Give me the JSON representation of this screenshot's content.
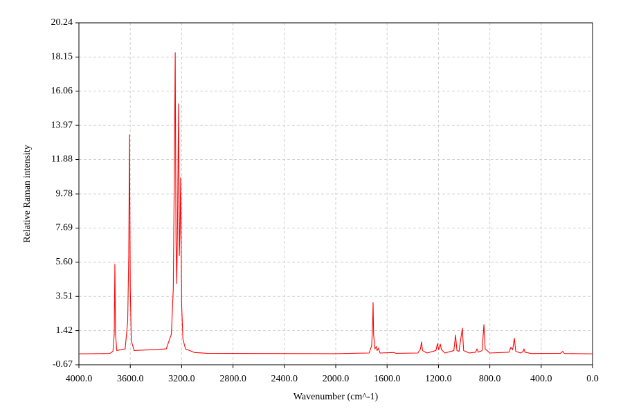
{
  "chart_data": {
    "type": "line",
    "xlabel": "Wavenumber (cm^-1)",
    "ylabel": "Relative Raman intensity",
    "color": "#ff0000",
    "grid": true,
    "xlim": [
      4000,
      0
    ],
    "ylim": [
      -0.67,
      20.24
    ],
    "xticks": [
      {
        "value": 4000,
        "label": "4000.0"
      },
      {
        "value": 3600,
        "label": "3600.0"
      },
      {
        "value": 3200,
        "label": "3200.0"
      },
      {
        "value": 2800,
        "label": "2800.0"
      },
      {
        "value": 2400,
        "label": "2400.0"
      },
      {
        "value": 2000,
        "label": "2000.0"
      },
      {
        "value": 1600,
        "label": "1600.0"
      },
      {
        "value": 1200,
        "label": "1200.0"
      },
      {
        "value": 800,
        "label": "800.0"
      },
      {
        "value": 400,
        "label": "400.0"
      },
      {
        "value": 0,
        "label": "0.0"
      }
    ],
    "yticks": [
      -0.67,
      1.42,
      3.51,
      {
        "value": 5.6,
        "label": "5.60"
      },
      7.69,
      9.78,
      11.88,
      13.97,
      16.06,
      18.15,
      20.24
    ],
    "x": [
      4000,
      3760,
      3735,
      3725,
      3720,
      3715,
      3705,
      3640,
      3620,
      3612,
      3606,
      3600,
      3592,
      3570,
      3320,
      3280,
      3265,
      3256,
      3250,
      3244,
      3238,
      3232,
      3224,
      3218,
      3213,
      3208,
      3200,
      3190,
      3170,
      3100,
      3000,
      2000,
      1740,
      1720,
      1712,
      1709,
      1705,
      1695,
      1684,
      1678,
      1668,
      1655,
      1550,
      1530,
      1360,
      1340,
      1332,
      1324,
      1290,
      1220,
      1208,
      1198,
      1186,
      1176,
      1150,
      1080,
      1067,
      1056,
      1040,
      1014,
      1004,
      960,
      910,
      900,
      890,
      860,
      846,
      836,
      800,
      650,
      636,
      622,
      609,
      598,
      560,
      540,
      534,
      526,
      480,
      250,
      232,
      220,
      0
    ],
    "values": [
      0,
      0.02,
      0.15,
      1.2,
      5.47,
      1.2,
      0.2,
      0.3,
      2.0,
      6.0,
      13.39,
      4.0,
      0.8,
      0.2,
      0.3,
      1.2,
      4.0,
      12.0,
      18.42,
      7.0,
      4.3,
      8.0,
      15.29,
      6.0,
      7.5,
      10.76,
      3.0,
      0.9,
      0.3,
      0.08,
      0.03,
      0.01,
      0.05,
      0.5,
      2.0,
      3.14,
      1.2,
      0.3,
      0.45,
      0.2,
      0.35,
      0.05,
      0.08,
      0.03,
      0.05,
      0.3,
      0.73,
      0.2,
      0.05,
      0.2,
      0.62,
      0.25,
      0.6,
      0.25,
      0.05,
      0.2,
      1.15,
      0.2,
      0.15,
      1.57,
      0.2,
      0.05,
      0.1,
      0.3,
      0.1,
      0.2,
      1.79,
      0.3,
      0.05,
      0.1,
      0.4,
      0.25,
      0.95,
      0.15,
      0.05,
      0.15,
      0.3,
      0.1,
      0.02,
      0.03,
      0.15,
      0.02,
      0
    ]
  }
}
